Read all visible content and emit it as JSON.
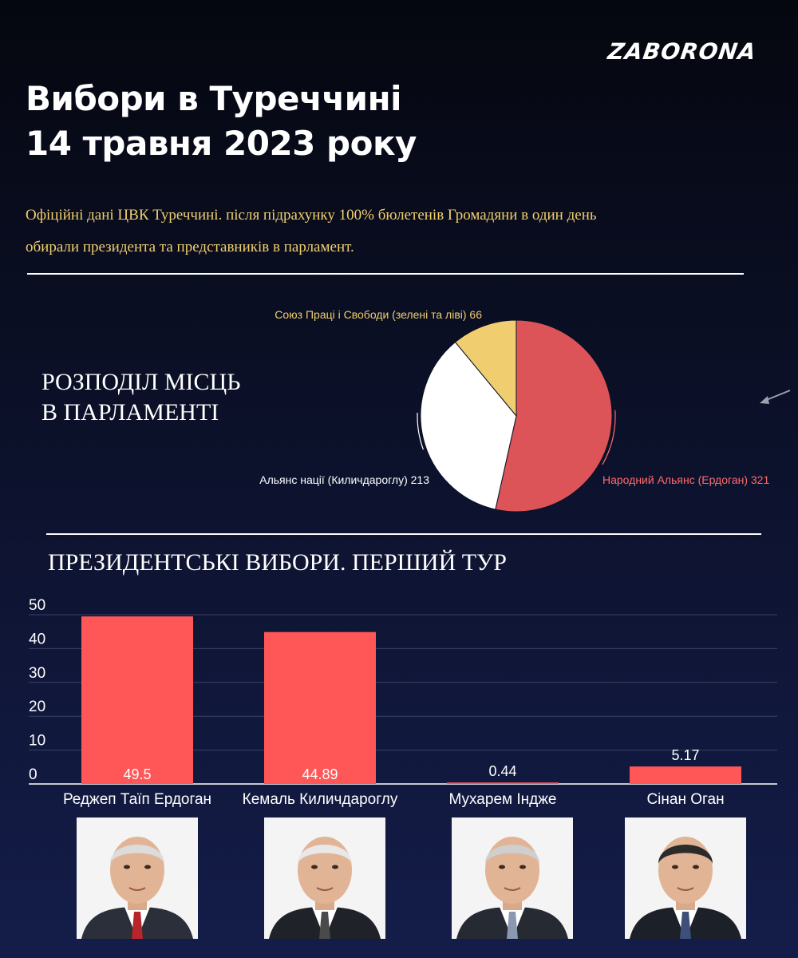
{
  "brand": {
    "logo_text": "ZABORONA"
  },
  "header": {
    "title_line1": "Вибори в Туреччині",
    "title_line2": "14 травня 2023 року",
    "subtitle_line1": "Офіційні дані ЦВК Туреччині. після підрахунку 100% бюлетенів  Громадяни в один день",
    "subtitle_line2": "обирали президента та представників в парламент."
  },
  "parliament": {
    "heading_line1": "РОЗПОДІЛ МІСЦЬ",
    "heading_line2": "В ПАРЛАМЕНТІ"
  },
  "presidential": {
    "heading": "ПРЕЗИДЕНТСЬКІ ВИБОРИ. ПЕРШИЙ ТУР"
  },
  "colors": {
    "background_top": "#05070f",
    "background_bottom": "#141d4a",
    "accent_red": "#ff5757",
    "pie_red": "#dc5457",
    "pie_yellow": "#f0cd6e",
    "pie_white": "#ffffff",
    "subtitle_yellow": "#f1cf6f"
  },
  "chart_data": [
    {
      "type": "pie",
      "title": "РОЗПОДІЛ МІСЦЬ В ПАРЛАМЕНТІ",
      "slices": [
        {
          "label": "Народний Альянс (Ердоган) 321",
          "value": 321,
          "color": "#dc5457",
          "label_color": "#ff6b6b"
        },
        {
          "label": "Альянс нації (Киличдароглу) 213",
          "value": 213,
          "color": "#ffffff",
          "label_color": "#ffffff"
        },
        {
          "label": "Союз Праці і Свободи (зелені та ліві) 66",
          "value": 66,
          "color": "#f0cd6e",
          "label_color": "#f0cd6e"
        }
      ]
    },
    {
      "type": "bar",
      "title": "ПРЕЗИДЕНТСЬКІ ВИБОРИ. ПЕРШИЙ ТУР",
      "categories": [
        "Реджеп Таїп Ердоган",
        "Кемаль Киличдароглу",
        "Мухарем Інджe",
        "Сінан Оган"
      ],
      "values": [
        49.5,
        44.89,
        0.44,
        5.17
      ],
      "value_labels": [
        "49.5",
        "44.89",
        "0.44",
        "5.17"
      ],
      "ylim": [
        0,
        50
      ],
      "yticks": [
        "0",
        "10",
        "20",
        "30",
        "40",
        "50"
      ],
      "grid": true,
      "bar_color": "#ff5757"
    }
  ],
  "photos": [
    {
      "name": "Реджеп Таїп Ердоган",
      "suit": "#2a2f3a",
      "tie": "#b8252b",
      "hair": "#dcdcdc"
    },
    {
      "name": "Кемаль Киличдароглу",
      "suit": "#1f2329",
      "tie": "#4a4a4a",
      "hair": "#e8e8e8"
    },
    {
      "name": "Мухарем Інджe",
      "suit": "#262b33",
      "tie": "#8a98b0",
      "hair": "#cfcfcf"
    },
    {
      "name": "Сінан Оган",
      "suit": "#1c2028",
      "tie": "#3d4f7a",
      "hair": "#2b2b2b"
    }
  ]
}
